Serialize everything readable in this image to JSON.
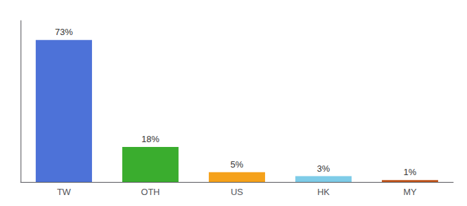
{
  "chart_data": {
    "type": "bar",
    "categories": [
      "TW",
      "OTH",
      "US",
      "HK",
      "MY"
    ],
    "values": [
      73,
      18,
      5,
      3,
      1
    ],
    "value_labels": [
      "73%",
      "18%",
      "5%",
      "3%",
      "1%"
    ],
    "colors": [
      "#4d72d8",
      "#3aad2e",
      "#f5a11a",
      "#7ecce8",
      "#c0541a"
    ],
    "ylim": [
      0,
      83
    ],
    "data_labels": true,
    "tick_labels": "x",
    "grid": false
  }
}
